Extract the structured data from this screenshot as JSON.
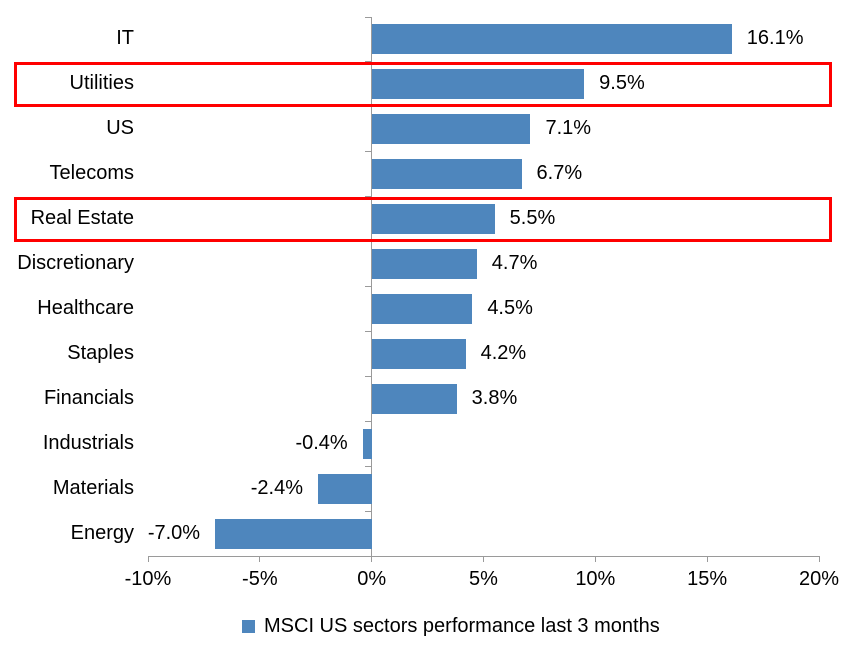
{
  "chart_data": {
    "type": "bar",
    "orientation": "horizontal",
    "title": "",
    "xlabel": "",
    "ylabel": "",
    "categories": [
      "IT",
      "Utilities",
      "US",
      "Telecoms",
      "Real Estate",
      "Discretionary",
      "Healthcare",
      "Staples",
      "Financials",
      "Industrials",
      "Materials",
      "Energy"
    ],
    "values": [
      16.1,
      9.5,
      7.1,
      6.7,
      5.5,
      4.7,
      4.5,
      4.2,
      3.8,
      -0.4,
      -2.4,
      -7.0
    ],
    "value_labels": [
      "16.1%",
      "9.5%",
      "7.1%",
      "6.7%",
      "5.5%",
      "4.7%",
      "4.5%",
      "4.2%",
      "3.8%",
      "-0.4%",
      "-2.4%",
      "-7.0%"
    ],
    "x_tick_values": [
      -10,
      -5,
      0,
      5,
      10,
      15,
      20
    ],
    "x_tick_labels": [
      "-10%",
      "-5%",
      "0%",
      "5%",
      "10%",
      "15%",
      "20%"
    ],
    "xlim": [
      -10,
      20
    ],
    "grid": "off",
    "legend": "MSCI US sectors performance last 3 months",
    "legend_position": "bottom",
    "bar_color": "#4E86BD",
    "axis_color": "#9A9A9A",
    "text_color": "#000000",
    "highlight_color": "#FF0000",
    "highlighted_categories": [
      "Utilities",
      "Real Estate"
    ]
  }
}
